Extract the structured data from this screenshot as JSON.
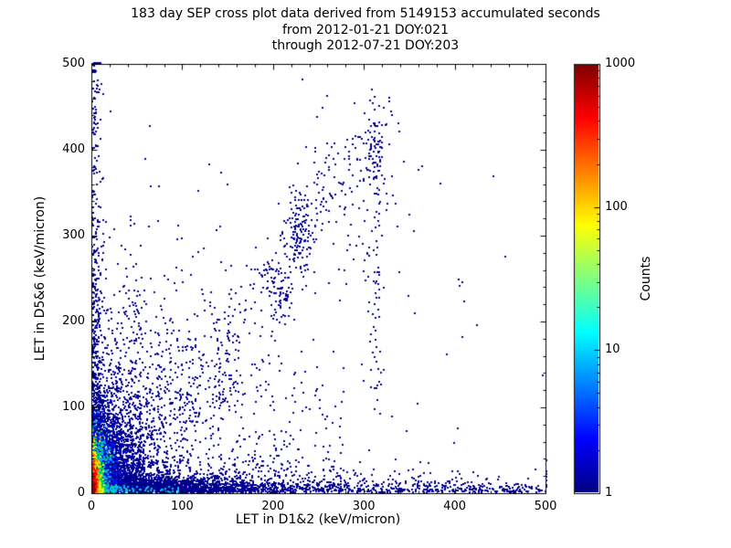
{
  "chart_data": {
    "type": "scatter",
    "title_lines": [
      "183 day SEP cross plot data derived from 5149153 accumulated seconds",
      "from 2012-01-21 DOY:021",
      "through 2012-07-21 DOY:203"
    ],
    "xlabel": "LET in D1&2 (keV/micron)",
    "ylabel": "LET in D5&6 (keV/micron)",
    "xlim": [
      0,
      500
    ],
    "ylim": [
      0,
      500
    ],
    "xticks": [
      0,
      100,
      200,
      300,
      400,
      500
    ],
    "yticks": [
      0,
      100,
      200,
      300,
      400,
      500
    ],
    "minor_tick_step": 20,
    "grid": false,
    "point_size": 2,
    "seed": 77,
    "base_color": "#000090",
    "colorbar": {
      "label": "Counts",
      "scale": "log",
      "ticks": [
        1000,
        100,
        10,
        1
      ],
      "range": [
        1,
        1000
      ],
      "colormap": "jet",
      "stops": [
        {
          "pos": 0,
          "color": "#000083"
        },
        {
          "pos": 12.5,
          "color": "#0000ff"
        },
        {
          "pos": 37.5,
          "color": "#00ffff"
        },
        {
          "pos": 62.5,
          "color": "#ffff00"
        },
        {
          "pos": 87.5,
          "color": "#ff0000"
        },
        {
          "pos": 100,
          "color": "#800000"
        }
      ]
    },
    "clusters": [
      {
        "name": "sparse-uniform",
        "n": 70,
        "color": "#000090",
        "x": {
          "dist": "uniform",
          "min": 0,
          "max": 500
        },
        "y": {
          "dist": "uniform",
          "min": 0,
          "max": 470
        }
      },
      {
        "name": "sparse-lowerleft",
        "n": 550,
        "color": "#000090",
        "x": {
          "dist": "halfnorm",
          "sigma": 115
        },
        "y": {
          "dist": "halfnorm",
          "sigma": 150
        }
      },
      {
        "name": "bottom-band-dense",
        "n": 2400,
        "color": "#000090",
        "x": {
          "dist": "exp",
          "scale": 70,
          "max": 500
        },
        "y": {
          "dist": "halfnorm",
          "sigma": 8
        }
      },
      {
        "name": "bottom-band-tail",
        "n": 600,
        "color": "#000090",
        "x": {
          "dist": "uniform",
          "min": 0,
          "max": 500
        },
        "y": {
          "dist": "halfnorm",
          "sigma": 7
        }
      },
      {
        "name": "bottom-band-thick",
        "n": 650,
        "color": "#000090",
        "x": {
          "dist": "exp",
          "scale": 105,
          "max": 500
        },
        "y": {
          "dist": "halfnorm",
          "sigma": 19
        }
      },
      {
        "name": "left-column",
        "n": 420,
        "color": "#000090",
        "x": {
          "dist": "halfnorm",
          "sigma": 6
        },
        "y": {
          "dist": "exp",
          "scale": 120,
          "max": 500
        }
      },
      {
        "name": "left-column-tall",
        "n": 120,
        "color": "#000090",
        "x": {
          "dist": "halfnorm",
          "sigma": 4
        },
        "y": {
          "dist": "uniform",
          "min": 0,
          "max": 500
        }
      },
      {
        "name": "streak-x45",
        "n": 150,
        "color": "#000090",
        "x": {
          "dist": "norm",
          "mu": 45,
          "sigma": 9
        },
        "y": {
          "dist": "exp",
          "scale": 70,
          "max": 235
        }
      },
      {
        "name": "streak-x75",
        "n": 80,
        "color": "#000090",
        "x": {
          "dist": "norm",
          "mu": 76,
          "sigma": 7
        },
        "y": {
          "dist": "exp",
          "scale": 55,
          "max": 185
        }
      },
      {
        "name": "mid-scatter",
        "n": 140,
        "color": "#000090",
        "x": {
          "dist": "uniform",
          "min": 120,
          "max": 280
        },
        "y": {
          "dist": "exp",
          "scale": 90,
          "max": 260
        }
      },
      {
        "name": "diagonal-band",
        "n": 250,
        "color": "#000090",
        "x": {
          "dist": "uniform",
          "min": 25,
          "max": 330
        },
        "y": {
          "dist": "diag",
          "slope": 1.35,
          "noise": 26
        }
      },
      {
        "name": "diagonal-fan",
        "n": 90,
        "color": "#000090",
        "x": {
          "dist": "norm",
          "mu": 285,
          "sigma": 34
        },
        "y": {
          "dist": "norm",
          "mu": 370,
          "sigma": 55
        }
      },
      {
        "name": "cluster-228-300",
        "n": 130,
        "color": "#000090",
        "x": {
          "dist": "norm",
          "mu": 228,
          "sigma": 9
        },
        "y": {
          "dist": "norm",
          "mu": 300,
          "sigma": 26
        }
      },
      {
        "name": "cluster-207-232",
        "n": 70,
        "color": "#000090",
        "x": {
          "dist": "norm",
          "mu": 207,
          "sigma": 7
        },
        "y": {
          "dist": "norm",
          "mu": 232,
          "sigma": 18
        }
      },
      {
        "name": "streak-x312",
        "n": 70,
        "color": "#000090",
        "x": {
          "dist": "norm",
          "mu": 312,
          "sigma": 5
        },
        "y": {
          "dist": "uniform",
          "min": 120,
          "max": 430
        }
      },
      {
        "name": "knot-312-400",
        "n": 45,
        "color": "#000090",
        "x": {
          "dist": "norm",
          "mu": 311,
          "sigma": 6
        },
        "y": {
          "dist": "norm",
          "mu": 400,
          "sigma": 22
        }
      },
      {
        "name": "cluster-150-140",
        "n": 55,
        "color": "#000090",
        "x": {
          "dist": "norm",
          "mu": 148,
          "sigma": 12
        },
        "y": {
          "dist": "norm",
          "mu": 138,
          "sigma": 22
        }
      },
      {
        "name": "cluster-107-98",
        "n": 30,
        "color": "#000090",
        "x": {
          "dist": "norm",
          "mu": 107,
          "sigma": 8
        },
        "y": {
          "dist": "norm",
          "mu": 98,
          "sigma": 15
        }
      },
      {
        "name": "midleft-speckle",
        "n": 300,
        "color": "#000090",
        "x": {
          "dist": "halfnorm",
          "sigma": 55
        },
        "y": {
          "dist": "norm",
          "mu": 115,
          "sigma": 60
        }
      },
      {
        "name": "blob-fringe",
        "n": 800,
        "color": "#000090",
        "x": {
          "dist": "halfnorm",
          "sigma": 35
        },
        "y": {
          "dist": "halfnorm",
          "sigma": 60
        }
      },
      {
        "name": "blob-dense-navy",
        "n": 1500,
        "color": "#000098",
        "x": {
          "dist": "halfnorm",
          "sigma": 22
        },
        "y": {
          "dist": "halfnorm",
          "sigma": 45
        }
      },
      {
        "name": "blob-blue",
        "n": 650,
        "color": "#0018e8",
        "x": {
          "dist": "halfnorm",
          "sigma": 14
        },
        "y": {
          "dist": "halfnorm",
          "sigma": 38
        }
      },
      {
        "name": "blob-cyan",
        "n": 420,
        "color": "#00b0f0",
        "x": {
          "dist": "halfnorm",
          "sigma": 9
        },
        "y": {
          "dist": "halfnorm",
          "sigma": 30
        }
      },
      {
        "name": "bottom-cyan-streak",
        "n": 160,
        "color": "#00c8d0",
        "x": {
          "dist": "exp",
          "scale": 26,
          "max": 95
        },
        "y": {
          "dist": "halfnorm",
          "sigma": 4
        }
      },
      {
        "name": "blob-green",
        "n": 320,
        "color": "#00dc50",
        "x": {
          "dist": "halfnorm",
          "sigma": 6.5
        },
        "y": {
          "dist": "halfnorm",
          "sigma": 25
        }
      },
      {
        "name": "blob-yellow",
        "n": 260,
        "color": "#f5ee00",
        "x": {
          "dist": "halfnorm",
          "sigma": 4.8
        },
        "y": {
          "dist": "halfnorm",
          "sigma": 21
        }
      },
      {
        "name": "blob-orange",
        "n": 220,
        "color": "#ff8c00",
        "x": {
          "dist": "halfnorm",
          "sigma": 3.4
        },
        "y": {
          "dist": "halfnorm",
          "sigma": 17
        }
      },
      {
        "name": "blob-red",
        "n": 170,
        "color": "#ee1000",
        "x": {
          "dist": "halfnorm",
          "sigma": 2.3
        },
        "y": {
          "dist": "halfnorm",
          "sigma": 13
        }
      },
      {
        "name": "blob-darkred",
        "n": 60,
        "color": "#990000",
        "x": {
          "dist": "halfnorm",
          "sigma": 1.3
        },
        "y": {
          "dist": "halfnorm",
          "sigma": 6
        }
      }
    ]
  }
}
